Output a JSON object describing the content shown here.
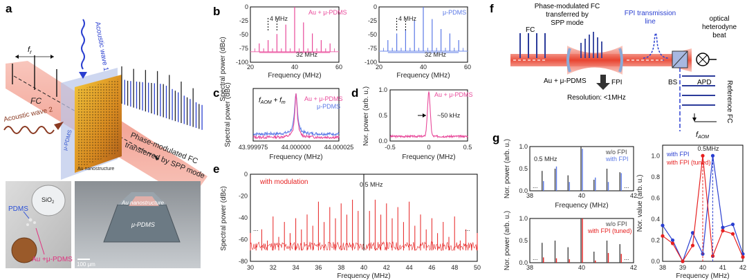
{
  "figure": {
    "panel_labels": [
      "a",
      "b",
      "c",
      "d",
      "e",
      "f",
      "g"
    ],
    "colors": {
      "pink": "#e8499a",
      "blue": "#5a78e6",
      "red": "#e62020",
      "gray": "#444444",
      "baseline_pink": "#f07cb6",
      "baseline_blue": "#8aa0ee"
    }
  },
  "panel_a": {
    "fr_label": "f",
    "fr_sub": "r",
    "fc_label": "FC",
    "acoustic1": "Acoustic wave 1",
    "acoustic2": "Acoustic wave 2",
    "pdms_label": "μ-PDMS",
    "au_label": "Au nanostructure",
    "output_label_1": "Phase-modulated FC",
    "output_label_2": "transferred by SPP mode",
    "photo_left_pdms": "PDMS",
    "photo_left_sio2": "SiO",
    "photo_left_sio2_sub": "2",
    "photo_left_au": "Au +μ-PDMS",
    "photo_right_au": "Au nanostructure",
    "photo_right_pdms": "μ-PDMS",
    "scalebar": "100 μm"
  },
  "chart_data": [
    {
      "id": "b-left",
      "type": "line",
      "title": "",
      "legend": "Au + μ-PDMS",
      "xlabel": "Frequency (MHz)",
      "ylabel": "Spectral power (dBc)",
      "xlim": [
        20,
        60
      ],
      "ylim": [
        -100,
        0
      ],
      "xticks": [
        20,
        40,
        60
      ],
      "yticks": [
        0,
        -25,
        -50,
        -75,
        -100
      ],
      "lines_x": [
        24,
        28,
        32,
        36,
        40,
        44,
        48,
        52,
        56
      ],
      "lines_y": [
        -66,
        -60,
        -49,
        -32,
        0,
        -28,
        -48,
        -60,
        -66
      ],
      "baseline": -81,
      "annotations": [
        "4 MHz",
        "32 MHz"
      ]
    },
    {
      "id": "b-right",
      "type": "line",
      "legend": "μ-PDMS",
      "xlabel": "Frequency (MHz)",
      "ylabel": "",
      "xlim": [
        20,
        60
      ],
      "ylim": [
        -100,
        0
      ],
      "xticks": [
        20,
        40,
        60
      ],
      "yticks": [
        0,
        -25,
        -50,
        -75,
        -100
      ],
      "lines_x": [
        24,
        28,
        32,
        36,
        40,
        44,
        48,
        52,
        56
      ],
      "lines_y": [
        -60,
        -48,
        -40,
        -24,
        0,
        -22,
        -40,
        -48,
        -60
      ],
      "baseline": -80,
      "annotations": [
        "4 MHz",
        "32 MHz"
      ]
    },
    {
      "id": "c",
      "type": "line",
      "xlabel": "Frequency (MHz)",
      "ylabel": "Spectral power (dBc)",
      "xlim": [
        43.999975,
        44.000025
      ],
      "xticks": [
        "43.999975",
        "44.000000",
        "44.000025"
      ],
      "annotation_main": "f",
      "annotation_sub1": "AOM",
      "annotation_plus": " + f",
      "annotation_sub2": "m",
      "series": [
        {
          "name": "Au + μ-PDMS",
          "color": "pink"
        },
        {
          "name": "μ-PDMS",
          "color": "blue"
        }
      ]
    },
    {
      "id": "d",
      "type": "line",
      "xlabel": "Frequency (MHz)",
      "ylabel": "Nor. power (arb. u.)",
      "xlim": [
        -0.5,
        0.5
      ],
      "ylim": [
        0,
        1
      ],
      "xticks": [
        "-0.5",
        "0",
        "0.5"
      ],
      "yticks": [
        "0.0",
        "0.5",
        "1.0"
      ],
      "legend": "Au + μ-PDMS",
      "annotation": "~50 kHz"
    },
    {
      "id": "e",
      "type": "line",
      "xlabel": "Frequency (MHz)",
      "ylabel": "Spectral power (dBc)",
      "xlim": [
        30,
        50
      ],
      "ylim": [
        -80,
        0
      ],
      "xticks": [
        30,
        32,
        34,
        36,
        38,
        40,
        42,
        44,
        46,
        48,
        50
      ],
      "yticks": [
        0,
        -20,
        -40,
        -60,
        -80
      ],
      "legend": "with modulation",
      "annotation": "0.5 MHz",
      "dots": "..."
    },
    {
      "id": "g-top",
      "type": "bar",
      "xlabel": "Frequency (MHz)",
      "ylabel": "Nor. power (arb. u.)",
      "xlim": [
        38,
        42
      ],
      "ylim": [
        0,
        1
      ],
      "xticks": [
        38,
        40,
        42
      ],
      "yticks": [
        "0.0",
        "0.5",
        "1.0"
      ],
      "series": [
        {
          "name": "w/o FPI",
          "color": "gray"
        },
        {
          "name": "with FPI",
          "color": "blue"
        }
      ],
      "annotation": "0.5 MHz",
      "dots": "..."
    },
    {
      "id": "g-bottom",
      "type": "bar",
      "xlabel": "Frequency (MHz)",
      "ylabel": "Nor. power (arb. u.)",
      "xlim": [
        38,
        42
      ],
      "ylim": [
        0,
        1
      ],
      "xticks": [
        38,
        40,
        42
      ],
      "yticks": [
        "0.0",
        "0.5",
        "1.0"
      ],
      "series": [
        {
          "name": "w/o FPI",
          "color": "gray"
        },
        {
          "name": "with FPI (tuned)",
          "color": "red"
        }
      ],
      "dots": "..."
    },
    {
      "id": "g-right",
      "type": "line",
      "xlabel": "Frequency (MHz)",
      "ylabel": "Nor. value (arb. u.)",
      "xlim": [
        38,
        42
      ],
      "ylim": [
        0,
        1
      ],
      "xticks": [
        38,
        39,
        40,
        41,
        42
      ],
      "yticks": [
        "0.0",
        "0.2",
        "0.4",
        "0.6",
        "0.8",
        "1.0"
      ],
      "annotation": "0.5MHz",
      "series": [
        {
          "name": "with FPI",
          "color": "blue",
          "x": [
            38,
            38.5,
            39,
            39.5,
            40,
            40.5,
            41,
            41.5,
            42
          ],
          "y": [
            0.34,
            0.2,
            0.0,
            0.27,
            0.07,
            1.0,
            0.32,
            0.35,
            0.07
          ]
        },
        {
          "name": "with FPI (tuned)",
          "color": "red",
          "x": [
            38,
            38.5,
            39,
            39.5,
            40,
            40.5,
            41,
            41.5,
            42
          ],
          "y": [
            0.24,
            0.17,
            0.0,
            0.15,
            1.0,
            0.05,
            0.29,
            0.26,
            0.04
          ]
        }
      ]
    }
  ],
  "panel_f": {
    "fc": "FC",
    "transfer_label_1": "Phase-modulated FC",
    "transfer_label_2": "transferred by",
    "transfer_label_3": "SPP mode",
    "fpi_line_1": "FPI transmission",
    "fpi_line_2": "line",
    "beat_1": "optical",
    "beat_2": "heterodyne",
    "beat_3": "beat",
    "au_label": "Au + μ-PDMS",
    "fpi": "FPI",
    "bs": "BS",
    "apd": "APD",
    "resolution": "Resolution: <1MHz",
    "reference_fc": "Reference FC",
    "faom_main": "f",
    "faom_sub": "AOM"
  }
}
